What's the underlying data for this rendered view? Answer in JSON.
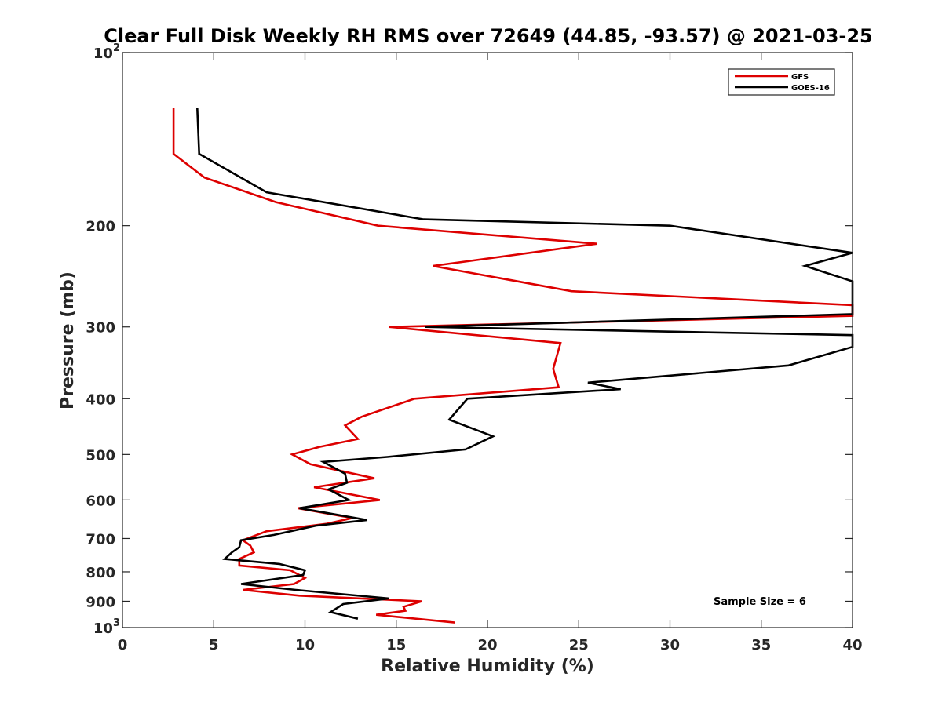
{
  "chart_data": {
    "type": "line",
    "title": "Clear Full Disk Weekly RH RMS over 72649 (44.85, -93.57) @ 2021-03-25",
    "xlabel": "Relative Humidity (%)",
    "ylabel": "Pressure (mb)",
    "xlim": [
      0,
      40
    ],
    "ylim": [
      100,
      1000
    ],
    "y_scale": "log",
    "y_reversed": true,
    "x_ticks": [
      "0",
      "5",
      "10",
      "15",
      "20",
      "25",
      "30",
      "35",
      "40"
    ],
    "y_ticks": [
      {
        "value": 100,
        "label": "10",
        "sup": "2"
      },
      {
        "value": 200,
        "label": "200",
        "sup": ""
      },
      {
        "value": 300,
        "label": "300",
        "sup": ""
      },
      {
        "value": 400,
        "label": "400",
        "sup": ""
      },
      {
        "value": 500,
        "label": "500",
        "sup": ""
      },
      {
        "value": 600,
        "label": "600",
        "sup": ""
      },
      {
        "value": 700,
        "label": "700",
        "sup": ""
      },
      {
        "value": 800,
        "label": "800",
        "sup": ""
      },
      {
        "value": 900,
        "label": "900",
        "sup": ""
      },
      {
        "value": 1000,
        "label": "10",
        "sup": "3"
      }
    ],
    "legend_position": "top-right",
    "annotation": "Sample Size = 6",
    "series": [
      {
        "name": "GFS",
        "color": "#dd0000",
        "points": [
          [
            2.8,
            125
          ],
          [
            2.8,
            150
          ],
          [
            4.5,
            165
          ],
          [
            8.4,
            182
          ],
          [
            14.0,
            200
          ],
          [
            26.0,
            215
          ],
          [
            17.0,
            235
          ],
          [
            24.6,
            260
          ],
          [
            40.0,
            275
          ],
          [
            40.0,
            287
          ],
          [
            14.6,
            300
          ],
          [
            24.0,
            320
          ],
          [
            23.6,
            355
          ],
          [
            23.9,
            382
          ],
          [
            16.0,
            400
          ],
          [
            13.1,
            430
          ],
          [
            12.2,
            445
          ],
          [
            12.9,
            470
          ],
          [
            10.8,
            485
          ],
          [
            9.3,
            500
          ],
          [
            10.3,
            520
          ],
          [
            13.8,
            550
          ],
          [
            10.5,
            570
          ],
          [
            14.1,
            600
          ],
          [
            9.6,
            620
          ],
          [
            12.6,
            645
          ],
          [
            11.2,
            660
          ],
          [
            7.9,
            680
          ],
          [
            6.6,
            705
          ],
          [
            7.0,
            720
          ],
          [
            7.2,
            740
          ],
          [
            6.4,
            760
          ],
          [
            6.4,
            780
          ],
          [
            9.2,
            795
          ],
          [
            10.0,
            820
          ],
          [
            9.4,
            840
          ],
          [
            6.6,
            860
          ],
          [
            9.7,
            880
          ],
          [
            16.4,
            900
          ],
          [
            15.4,
            920
          ],
          [
            15.5,
            935
          ],
          [
            13.9,
            950
          ],
          [
            18.2,
            980
          ]
        ]
      },
      {
        "name": "GOES-16",
        "color": "#000000",
        "points": [
          [
            4.1,
            125
          ],
          [
            4.2,
            150
          ],
          [
            7.9,
            175
          ],
          [
            16.5,
            195
          ],
          [
            30.0,
            200
          ],
          [
            40.0,
            223
          ],
          [
            37.4,
            235
          ],
          [
            40.0,
            250
          ],
          [
            40.0,
            265
          ],
          [
            40.0,
            285
          ],
          [
            16.6,
            300
          ],
          [
            40.0,
            310
          ],
          [
            40.0,
            325
          ],
          [
            36.5,
            350
          ],
          [
            25.5,
            375
          ],
          [
            27.3,
            385
          ],
          [
            18.9,
            400
          ],
          [
            17.9,
            435
          ],
          [
            20.3,
            465
          ],
          [
            18.8,
            490
          ],
          [
            14.5,
            505
          ],
          [
            11.0,
            515
          ],
          [
            12.2,
            540
          ],
          [
            12.3,
            560
          ],
          [
            11.3,
            575
          ],
          [
            12.4,
            600
          ],
          [
            9.7,
            620
          ],
          [
            13.4,
            650
          ],
          [
            10.6,
            665
          ],
          [
            8.3,
            690
          ],
          [
            6.5,
            705
          ],
          [
            6.4,
            725
          ],
          [
            6.0,
            740
          ],
          [
            5.6,
            760
          ],
          [
            8.6,
            775
          ],
          [
            10.0,
            795
          ],
          [
            9.9,
            810
          ],
          [
            6.5,
            840
          ],
          [
            9.5,
            860
          ],
          [
            14.6,
            890
          ],
          [
            12.1,
            910
          ],
          [
            11.4,
            940
          ],
          [
            12.9,
            965
          ]
        ]
      }
    ]
  }
}
